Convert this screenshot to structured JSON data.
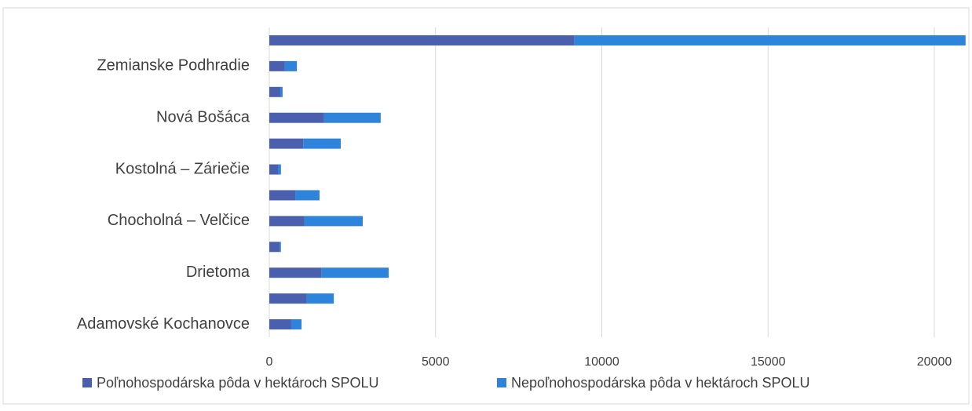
{
  "chart_data": {
    "type": "bar",
    "orientation": "horizontal",
    "stacked": true,
    "categories": [
      "Adamovské Kochanovce",
      null,
      "Drietoma",
      null,
      "Chocholná – Velčice",
      null,
      "Kostolná – Záriečie",
      null,
      "Nová Bošáca",
      null,
      "Zemianske Podhradie",
      null
    ],
    "series": [
      {
        "name": "Poľnohospodárska pôda v hektároch SPOLU",
        "color": "#4a60ae",
        "values": [
          660,
          1130,
          1560,
          310,
          1060,
          780,
          260,
          1020,
          1650,
          330,
          470,
          9180
        ]
      },
      {
        "name": "Nepoľnohospodárska pôda v hektároch SPOLU",
        "color": "#2e84da",
        "values": [
          310,
          810,
          2030,
          40,
          1750,
          730,
          90,
          1130,
          1700,
          70,
          360,
          11760
        ]
      }
    ],
    "xlim": [
      0,
      20000
    ],
    "xticks": [
      0,
      5000,
      10000,
      15000,
      20000
    ],
    "grid": true,
    "legend": "bottom"
  }
}
